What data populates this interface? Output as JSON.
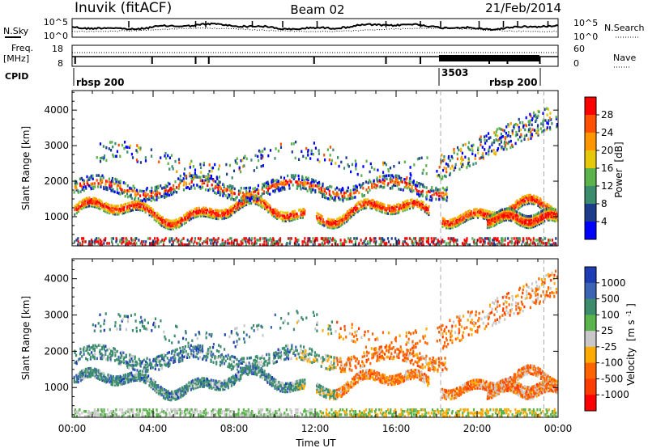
{
  "header": {
    "radar": "Inuvik (fitACF)",
    "beam": "Beam 02",
    "date": "21/Feb/2014"
  },
  "noise_panel": {
    "left_label": "N.Sky",
    "left_ticks": [
      "10^5",
      "10^0"
    ],
    "right_ticks": [
      "10^5",
      "10^0"
    ],
    "right_label": "N.Search"
  },
  "freq_panel": {
    "label": "Freq.",
    "unit": "[MHz]",
    "left_ticks": [
      "18",
      "8"
    ],
    "right_ticks": [
      "60",
      "0"
    ],
    "right_label": "Nave",
    "cpid_label": "CPID",
    "cpid_segments": [
      "rbsp 200",
      "3503",
      "rbsp 200"
    ]
  },
  "colors": {
    "power": [
      "#0000ff",
      "#1e3c8c",
      "#3c8c6e",
      "#5ab44b",
      "#e6c80a",
      "#ff9600",
      "#ff5000",
      "#ff0000"
    ],
    "velocity": [
      "#1e3cb4",
      "#3c64b4",
      "#3c8c6e",
      "#5ab44b",
      "#c8c8c8",
      "#ffaa00",
      "#ff6400",
      "#ff3c00",
      "#ff0000"
    ]
  },
  "chart_data": [
    {
      "type": "heatmap",
      "title": "",
      "xlabel": "Time UT",
      "ylabel": "Slant Range [km]",
      "xlim": [
        "00:00",
        "24:00"
      ],
      "ylim": [
        180,
        4550
      ],
      "x_ticks": [
        "00:00",
        "04:00",
        "08:00",
        "12:00",
        "16:00",
        "20:00",
        "00:00"
      ],
      "y_ticks": [
        "1000",
        "2000",
        "3000",
        "4000"
      ],
      "colorbar": {
        "title": "Power",
        "unit": "[dB]",
        "ticks": [
          "28",
          "24",
          "20",
          "16",
          "12",
          "8",
          "4"
        ]
      }
    },
    {
      "type": "heatmap",
      "title": "",
      "xlabel": "Time UT",
      "ylabel": "Slant Range [km]",
      "xlim": [
        "00:00",
        "24:00"
      ],
      "ylim": [
        180,
        4550
      ],
      "x_ticks": [
        "00:00",
        "04:00",
        "08:00",
        "12:00",
        "16:00",
        "20:00",
        "00:00"
      ],
      "y_ticks": [
        "1000",
        "2000",
        "3000",
        "4000"
      ],
      "colorbar": {
        "title": "Velocity",
        "unit": "[m s",
        "unit_sup": "-1",
        "unit_close": "]",
        "ticks": [
          "1000",
          "500",
          "100",
          "25",
          "-25",
          "-100",
          "-500",
          "-1000"
        ]
      }
    }
  ]
}
